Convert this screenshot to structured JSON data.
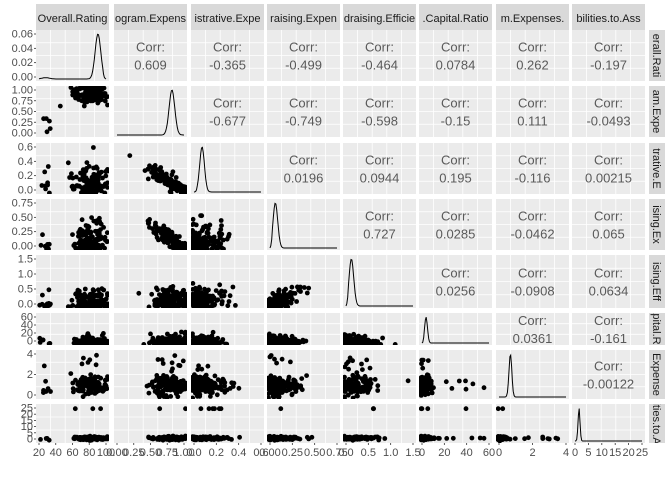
{
  "chart_data": {
    "type": "scatter",
    "variables": [
      "Overall.Rating",
      "Program.Expenses",
      "Administrative.Expenses",
      "Fundraising.Expenses",
      "Fundraising.Efficiency",
      "Working.Capital.Ratio",
      "Program.Expenses.Growth",
      "Liabilities.to.Assets"
    ],
    "top_strip_labels": [
      "Overall.Rating",
      "ogram.Expens",
      "istrative.Expe",
      "raising.Expen",
      "draising.Efficie",
      ".Capital.Ratio",
      "m.Expenses.",
      "bilities.to.Ass"
    ],
    "right_strip_labels": [
      "erall.Rati",
      "am.Expe",
      "trative.E",
      "ising.Ex",
      "ising.Eff",
      "apital.Ra",
      "Expense",
      "ities.to.A"
    ],
    "correlations": [
      {
        "row": 1,
        "col": 2,
        "value": "0.609"
      },
      {
        "row": 1,
        "col": 3,
        "value": "-0.365"
      },
      {
        "row": 1,
        "col": 4,
        "value": "-0.499"
      },
      {
        "row": 1,
        "col": 5,
        "value": "-0.464"
      },
      {
        "row": 1,
        "col": 6,
        "value": "0.0784"
      },
      {
        "row": 1,
        "col": 7,
        "value": "0.262"
      },
      {
        "row": 1,
        "col": 8,
        "value": "-0.197"
      },
      {
        "row": 2,
        "col": 3,
        "value": "-0.677"
      },
      {
        "row": 2,
        "col": 4,
        "value": "-0.749"
      },
      {
        "row": 2,
        "col": 5,
        "value": "-0.598"
      },
      {
        "row": 2,
        "col": 6,
        "value": "-0.15"
      },
      {
        "row": 2,
        "col": 7,
        "value": "0.111"
      },
      {
        "row": 2,
        "col": 8,
        "value": "-0.0493"
      },
      {
        "row": 3,
        "col": 4,
        "value": "0.0196"
      },
      {
        "row": 3,
        "col": 5,
        "value": "0.0944"
      },
      {
        "row": 3,
        "col": 6,
        "value": "0.195"
      },
      {
        "row": 3,
        "col": 7,
        "value": "-0.116"
      },
      {
        "row": 3,
        "col": 8,
        "value": "0.00215"
      },
      {
        "row": 4,
        "col": 5,
        "value": "0.727"
      },
      {
        "row": 4,
        "col": 6,
        "value": "0.0285"
      },
      {
        "row": 4,
        "col": 7,
        "value": "-0.0462"
      },
      {
        "row": 4,
        "col": 8,
        "value": "0.065"
      },
      {
        "row": 5,
        "col": 6,
        "value": "0.0256"
      },
      {
        "row": 5,
        "col": 7,
        "value": "-0.0908"
      },
      {
        "row": 5,
        "col": 8,
        "value": "0.0634"
      },
      {
        "row": 6,
        "col": 7,
        "value": "0.0361"
      },
      {
        "row": 6,
        "col": 8,
        "value": "-0.161"
      },
      {
        "row": 7,
        "col": 8,
        "value": "-0.00122"
      }
    ],
    "corr_label": "Corr:",
    "y_ticks": [
      [
        "0.06",
        "0.04",
        "0.02",
        "0.00"
      ],
      [
        "1.00",
        "0.75",
        "0.50",
        "0.25",
        "0.00"
      ],
      [
        "0.6",
        "0.4",
        "0.2",
        "0.0"
      ],
      [
        "0.75",
        "0.50",
        "0.25",
        "0.00"
      ],
      [
        "1.5",
        "1.0",
        "0.5",
        "0.0"
      ],
      [
        "60",
        "40",
        "20",
        "0"
      ],
      [
        "4",
        "2",
        "0"
      ],
      [
        "25",
        "20",
        "15",
        "10",
        "5",
        "0"
      ]
    ],
    "x_ticks": [
      [
        "20",
        "40",
        "60",
        "80",
        "100"
      ],
      [
        "0.00",
        "0.25",
        "0.50",
        "0.75",
        "1.00"
      ],
      [
        "0.0",
        "0.2",
        "0.4",
        "0.6"
      ],
      [
        "0.00",
        "0.25",
        "0.50",
        "0.75"
      ],
      [
        "0.0",
        "0.5",
        "1.0",
        "1.5"
      ],
      [
        "0",
        "20",
        "40",
        "60"
      ],
      [
        "0",
        "2",
        "4"
      ],
      [
        "0",
        "5",
        "10",
        "15",
        "20",
        "25"
      ]
    ],
    "grid": true,
    "colors": {
      "panel": "#ebebeb",
      "strip": "#d9d9d9",
      "grid": "#ffffff",
      "point": "#000000",
      "corr_text": "#595959",
      "tick_text": "#4d4d4d"
    }
  }
}
